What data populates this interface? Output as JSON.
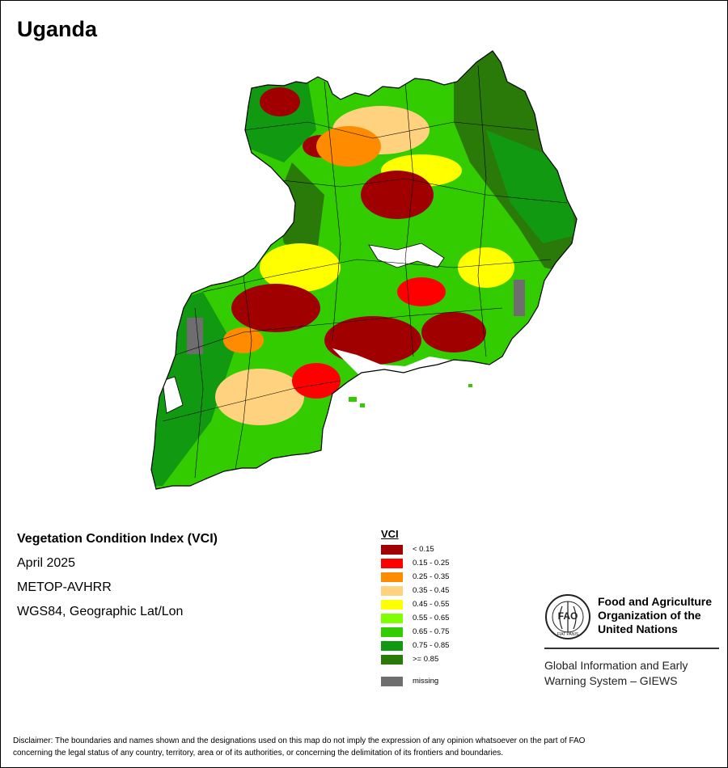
{
  "map": {
    "title": "Uganda",
    "index_title": "Vegetation Condition Index (VCI)",
    "period": "April 2025",
    "sensor": "METOP-AVHRR",
    "projection": "WGS84, Geographic Lat/Lon"
  },
  "legend": {
    "title": "VCI",
    "classes": [
      {
        "label": "< 0.15",
        "color": "#a00000"
      },
      {
        "label": "0.15 - 0.25",
        "color": "#ff0000"
      },
      {
        "label": "0.25 - 0.35",
        "color": "#ff8c00"
      },
      {
        "label": "0.35 - 0.45",
        "color": "#ffd27f"
      },
      {
        "label": "0.45 - 0.55",
        "color": "#ffff00"
      },
      {
        "label": "0.55 - 0.65",
        "color": "#80ff00"
      },
      {
        "label": "0.65 - 0.75",
        "color": "#33cc00"
      },
      {
        "label": "0.75 - 0.85",
        "color": "#119911"
      },
      {
        "label": ">= 0.85",
        "color": "#2a7a0a"
      }
    ],
    "missing": {
      "label": "missing",
      "color": "#6e6e6e"
    }
  },
  "organization": {
    "name_line1": "Food and Agriculture",
    "name_line2": "Organization of the",
    "name_line3": "United Nations",
    "logo_letters": "FAO",
    "logo_motto": "FIAT PANIS",
    "program_line1": "Global Information and Early",
    "program_line2": "Warning System – GIEWS"
  },
  "disclaimer": {
    "line1": "Disclaimer: The boundaries and names shown and the designations used on this map do not imply the expression of any opinion whatsoever on the part of FAO",
    "line2": "concerning the legal status of any country, territory, area or of its authorities, or concerning the delimitation of its frontiers and boundaries."
  }
}
